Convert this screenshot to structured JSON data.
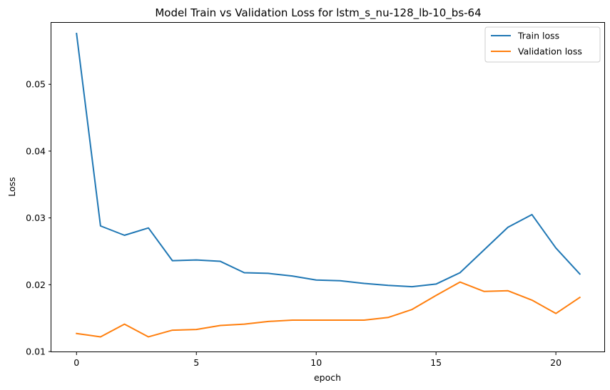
{
  "chart_data": {
    "type": "line",
    "title": "Model Train vs Validation Loss for lstm_s_nu-128_lb-10_bs-64",
    "xlabel": "epoch",
    "ylabel": "Loss",
    "xlim": [
      -1.05,
      22.05
    ],
    "ylim": [
      0.0099,
      0.0592
    ],
    "xticks": [
      0,
      5,
      10,
      15,
      20
    ],
    "yticks": [
      0.01,
      0.02,
      0.03,
      0.04,
      0.05
    ],
    "xtick_labels": [
      "0",
      "5",
      "10",
      "15",
      "20"
    ],
    "ytick_labels": [
      "0.01",
      "0.02",
      "0.03",
      "0.04",
      "0.05"
    ],
    "grid": false,
    "legend_position": "top-right",
    "x": [
      0,
      1,
      2,
      3,
      4,
      5,
      6,
      7,
      8,
      9,
      10,
      11,
      12,
      13,
      14,
      15,
      16,
      17,
      18,
      19,
      20,
      21
    ],
    "series": [
      {
        "name": "Train loss",
        "color": "#1f77b4",
        "values": [
          0.0576,
          0.0288,
          0.0274,
          0.0285,
          0.0236,
          0.0237,
          0.0235,
          0.0218,
          0.0217,
          0.0213,
          0.0207,
          0.0206,
          0.0202,
          0.0199,
          0.0197,
          0.0201,
          0.0218,
          0.0252,
          0.0286,
          0.0305,
          0.0255,
          0.0216
        ]
      },
      {
        "name": "Validation loss",
        "color": "#ff7f0e",
        "values": [
          0.0127,
          0.0122,
          0.0141,
          0.0122,
          0.0132,
          0.0133,
          0.0139,
          0.0141,
          0.0145,
          0.0147,
          0.0147,
          0.0147,
          0.0147,
          0.0151,
          0.0163,
          0.0184,
          0.0204,
          0.019,
          0.0191,
          0.0177,
          0.0157,
          0.0181
        ]
      }
    ]
  }
}
